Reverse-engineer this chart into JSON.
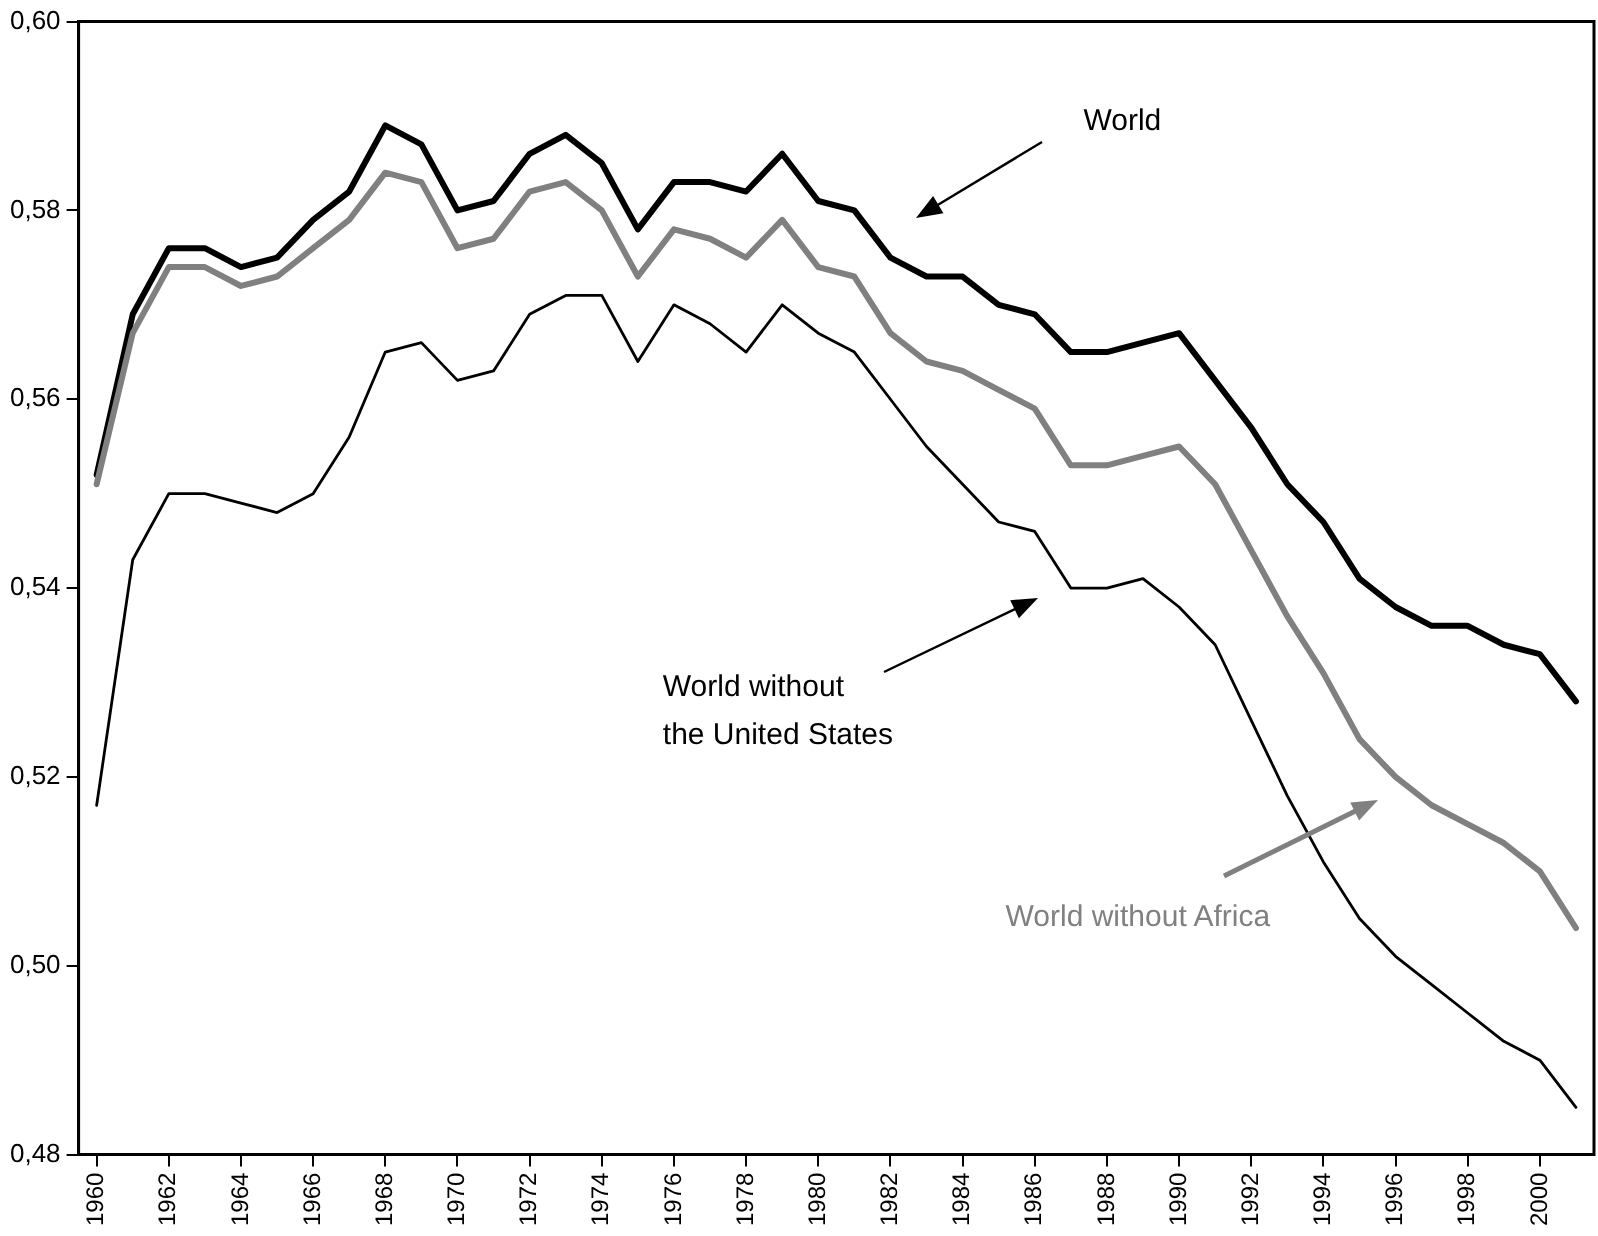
{
  "chart_data": {
    "type": "line",
    "x": [
      1960,
      1961,
      1962,
      1963,
      1964,
      1965,
      1966,
      1967,
      1968,
      1969,
      1970,
      1971,
      1972,
      1973,
      1974,
      1975,
      1976,
      1977,
      1978,
      1979,
      1980,
      1981,
      1982,
      1983,
      1984,
      1985,
      1986,
      1987,
      1988,
      1989,
      1990,
      1991,
      1992,
      1993,
      1994,
      1995,
      1996,
      1997,
      1998,
      1999,
      2000,
      2001
    ],
    "series": [
      {
        "color": "#000000",
        "values": [
          0.552,
          0.569,
          0.576,
          0.576,
          0.574,
          0.575,
          0.579,
          0.582,
          0.589,
          0.587,
          0.58,
          0.581,
          0.586,
          0.588,
          0.585,
          0.578,
          0.583,
          0.583,
          0.582,
          0.586,
          0.581,
          0.58,
          0.575,
          0.573,
          0.573,
          0.57,
          0.569,
          0.565,
          0.565,
          0.566,
          0.567,
          0.562,
          0.557,
          0.551,
          0.547,
          0.541,
          0.538,
          0.536,
          0.536,
          0.534,
          0.533,
          0.528
        ]
      },
      {
        "color": "#000000",
        "values": [
          0.517,
          0.543,
          0.55,
          0.55,
          0.549,
          0.548,
          0.55,
          0.556,
          0.565,
          0.566,
          0.562,
          0.563,
          0.569,
          0.571,
          0.571,
          0.564,
          0.57,
          0.568,
          0.565,
          0.57,
          0.567,
          0.565,
          0.56,
          0.555,
          0.551,
          0.547,
          0.546,
          0.54,
          0.54,
          0.541,
          0.538,
          0.534,
          0.526,
          0.518,
          0.511,
          0.505,
          0.501,
          0.498,
          0.495,
          0.492,
          0.49,
          0.485
        ]
      },
      {
        "color": "#808080",
        "values": [
          0.551,
          0.567,
          0.574,
          0.574,
          0.572,
          0.573,
          0.576,
          0.579,
          0.584,
          0.583,
          0.576,
          0.577,
          0.582,
          0.583,
          0.58,
          0.573,
          0.578,
          0.577,
          0.575,
          0.579,
          0.574,
          0.573,
          0.567,
          0.564,
          0.563,
          0.561,
          0.559,
          0.553,
          0.553,
          0.554,
          0.555,
          0.551,
          0.544,
          0.537,
          0.531,
          0.524,
          0.52,
          0.517,
          0.515,
          0.513,
          0.51,
          0.504
        ]
      }
    ],
    "xlim": [
      1959.5,
      2001.5
    ],
    "xticks": [
      1960,
      1962,
      1964,
      1966,
      1968,
      1970,
      1972,
      1974,
      1976,
      1978,
      1980,
      1982,
      1984,
      1986,
      1988,
      1990,
      1992,
      1994,
      1996,
      1998,
      2000
    ],
    "ylim": [
      0.48,
      0.6
    ],
    "yticks": [
      {
        "value": 0.48,
        "label": "0,48"
      },
      {
        "value": 0.5,
        "label": "0,50"
      },
      {
        "value": 0.52,
        "label": "0,52"
      },
      {
        "value": 0.54,
        "label": "0,54"
      },
      {
        "value": 0.56,
        "label": "0,56"
      },
      {
        "value": 0.58,
        "label": "0,58"
      },
      {
        "value": 0.6,
        "label": "0,60"
      }
    ],
    "grid": false,
    "annotations": [
      "World",
      "World without the United States",
      "World without Africa"
    ],
    "legend": false,
    "marker": "none",
    "line_style": "solid"
  }
}
